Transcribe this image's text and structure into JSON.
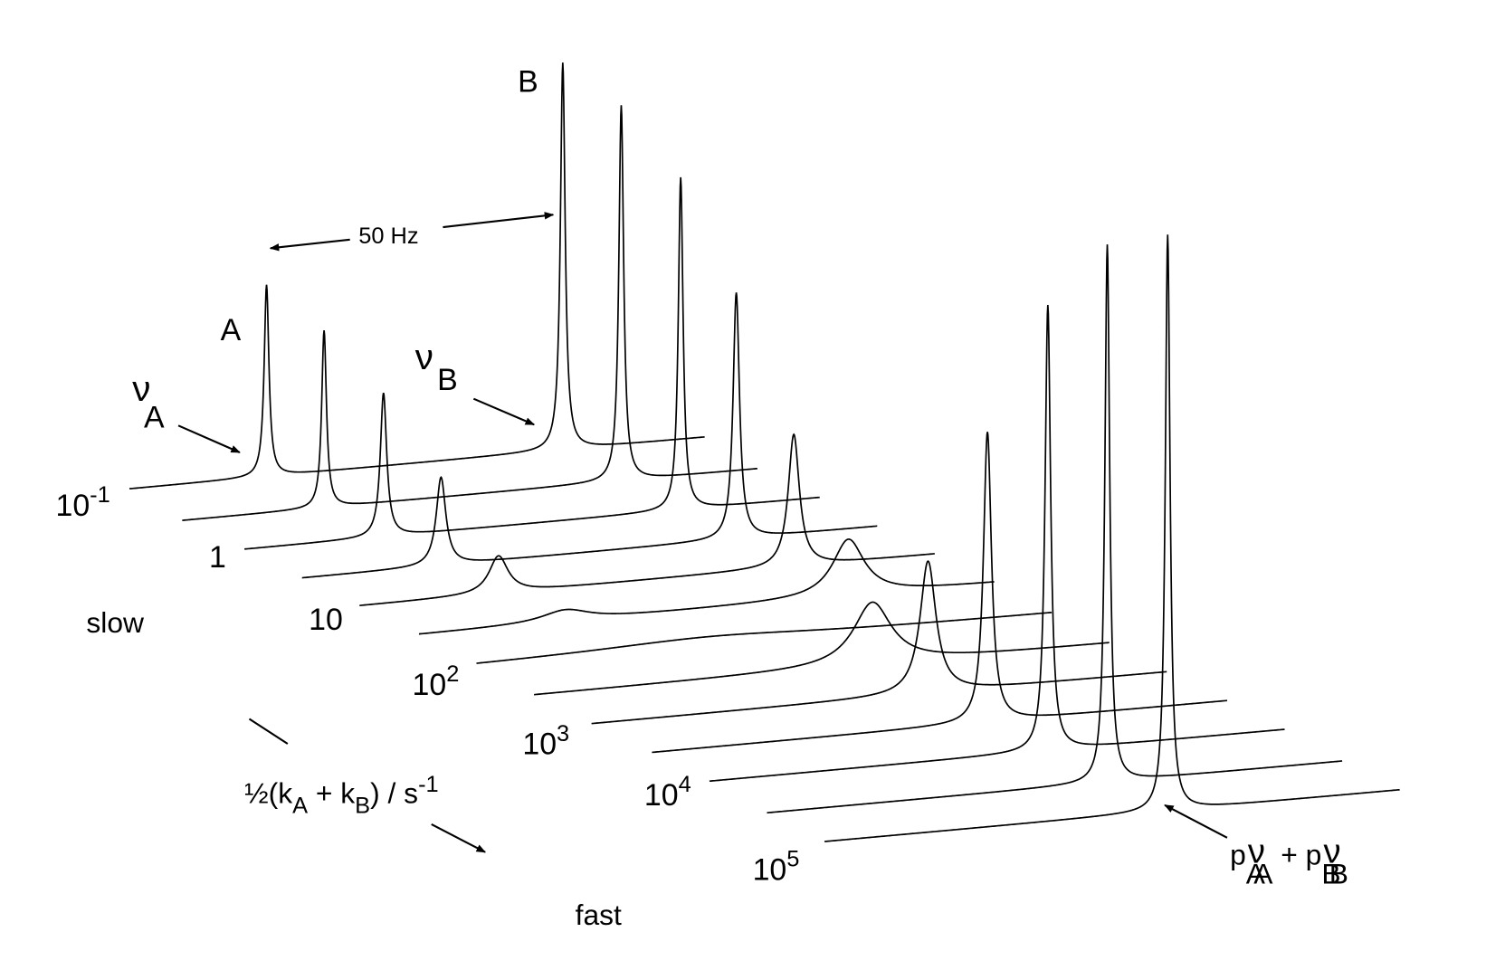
{
  "labels": {
    "peak_a": "A",
    "peak_b": "B",
    "separation": "50 Hz",
    "nu_a": [
      "ν",
      "A"
    ],
    "nu_b": [
      "ν",
      "B"
    ],
    "slow": "slow",
    "fast": "fast",
    "axis_label": [
      "½(k",
      "A",
      " + k",
      "B",
      ") / s",
      "-1"
    ],
    "average": [
      "p",
      "A",
      "ν",
      "A",
      " + p",
      "B",
      "ν",
      "B"
    ]
  },
  "rates": [
    [
      "10",
      "-1"
    ],
    [
      "1"
    ],
    [
      "10"
    ],
    [
      "10",
      "2"
    ],
    [
      "10",
      "3"
    ],
    [
      "10",
      "4"
    ],
    [
      "10",
      "5"
    ]
  ]
}
